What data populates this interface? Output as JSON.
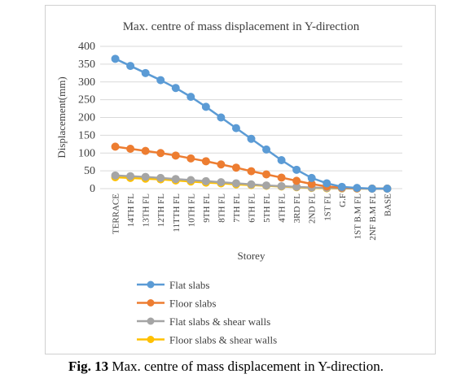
{
  "chart_data": {
    "type": "line",
    "title": "Max. centre of mass displacement in Y-direction",
    "xlabel": "Storey",
    "ylabel": "Displacement(mm)",
    "ylim": [
      0,
      400
    ],
    "yticks": [
      "0",
      "50",
      "100",
      "150",
      "200",
      "250",
      "300",
      "350",
      "400"
    ],
    "grid": true,
    "legend_position": "bottom",
    "categories": [
      "TERRACE",
      "14TH FL",
      "13TH FL",
      "12TH FL",
      "11TTH FL",
      "10TH FL",
      "9TH FL",
      "8TH FL",
      "7TH FL",
      "6TH FL",
      "5TH FL",
      "4TH FL",
      "3RD FL",
      "2ND FL",
      "1ST FL",
      "G.F",
      "1ST B.M FL",
      "2NF B.M FL",
      "BASE"
    ],
    "series": [
      {
        "name": "Flat slabs",
        "color": "#5b9bd5",
        "values": [
          365,
          345,
          325,
          305,
          283,
          258,
          230,
          200,
          170,
          140,
          110,
          80,
          53,
          30,
          15,
          5,
          2,
          0,
          0
        ]
      },
      {
        "name": "Floor slabs",
        "color": "#ed7d31",
        "values": [
          118,
          112,
          106,
          100,
          93,
          85,
          77,
          68,
          59,
          49,
          40,
          31,
          22,
          13,
          6,
          3,
          1,
          0,
          0
        ]
      },
      {
        "name": "Flat slabs & shear walls",
        "color": "#a5a5a5",
        "values": [
          37,
          35,
          33,
          30,
          27,
          24,
          21,
          18,
          15,
          12,
          9,
          7,
          5,
          3,
          2,
          1,
          0.5,
          0,
          0
        ]
      },
      {
        "name": "Floor slabs & shear walls",
        "color": "#ffc000",
        "values": [
          32,
          30,
          28,
          26,
          23,
          20,
          17,
          15,
          12,
          10,
          8,
          6,
          4,
          2,
          1,
          0.5,
          0.2,
          0,
          0
        ]
      }
    ]
  },
  "caption": {
    "label": "Fig. 13",
    "text": " Max. centre of mass displacement in Y-direction."
  }
}
